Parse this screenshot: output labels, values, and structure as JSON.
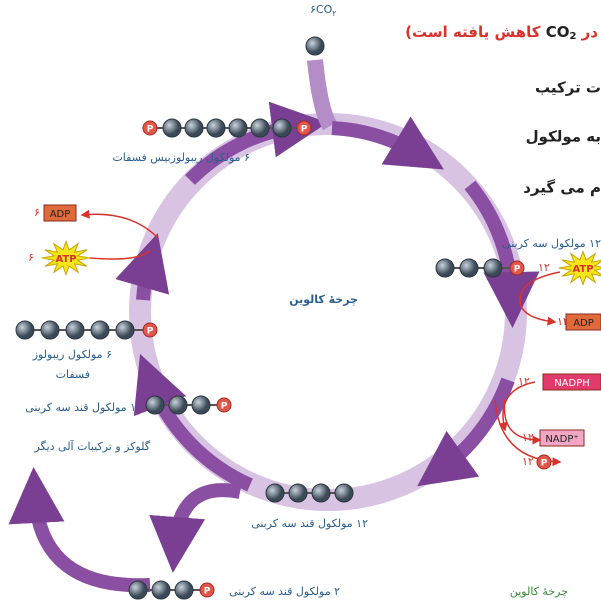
{
  "intro": {
    "line1_red_a": "در",
    "line1_co": "CO",
    "line1_sub": "2",
    "line1_red_b": "کاهش یافته است)",
    "line2": "ت ترکیب",
    "line3": "به مولکول",
    "line4": "م می گیرد"
  },
  "co2": {
    "label": "۶CO",
    "sub": "۲"
  },
  "phosphate": "P",
  "labels": {
    "rubp": "۶ مولکول ریبولوزبیس فسفات",
    "three_carbon": "۱۲ مولکول سه کربنی",
    "cycle": "چرخهٔ کالوین",
    "rup_1": "۶ مولکول ریبولوز",
    "rup_2": "فسفات",
    "ten_sugar": "۱۰ مولکول قند سه کربنی",
    "glucose": "گلوکز و ترکیبات آلی دیگر",
    "twelve_sugar": "۱۲ مولکول قند سه کربنی",
    "two_sugar": "۲ مولکول قند سه کربنی",
    "caption": "چرخهٔ کالوین"
  },
  "energy": {
    "adp_left_count": "۶",
    "atp_left_count": "۶",
    "atp_right_count": "۱۲",
    "adp_right_count": "۱۲",
    "nadph_count": "۱۲",
    "nadp_count": "۱۲",
    "p_count": "۱۲",
    "adp": "ADP",
    "atp": "ATP",
    "nadph": "NADPH",
    "nadp": "NADP⁺"
  }
}
